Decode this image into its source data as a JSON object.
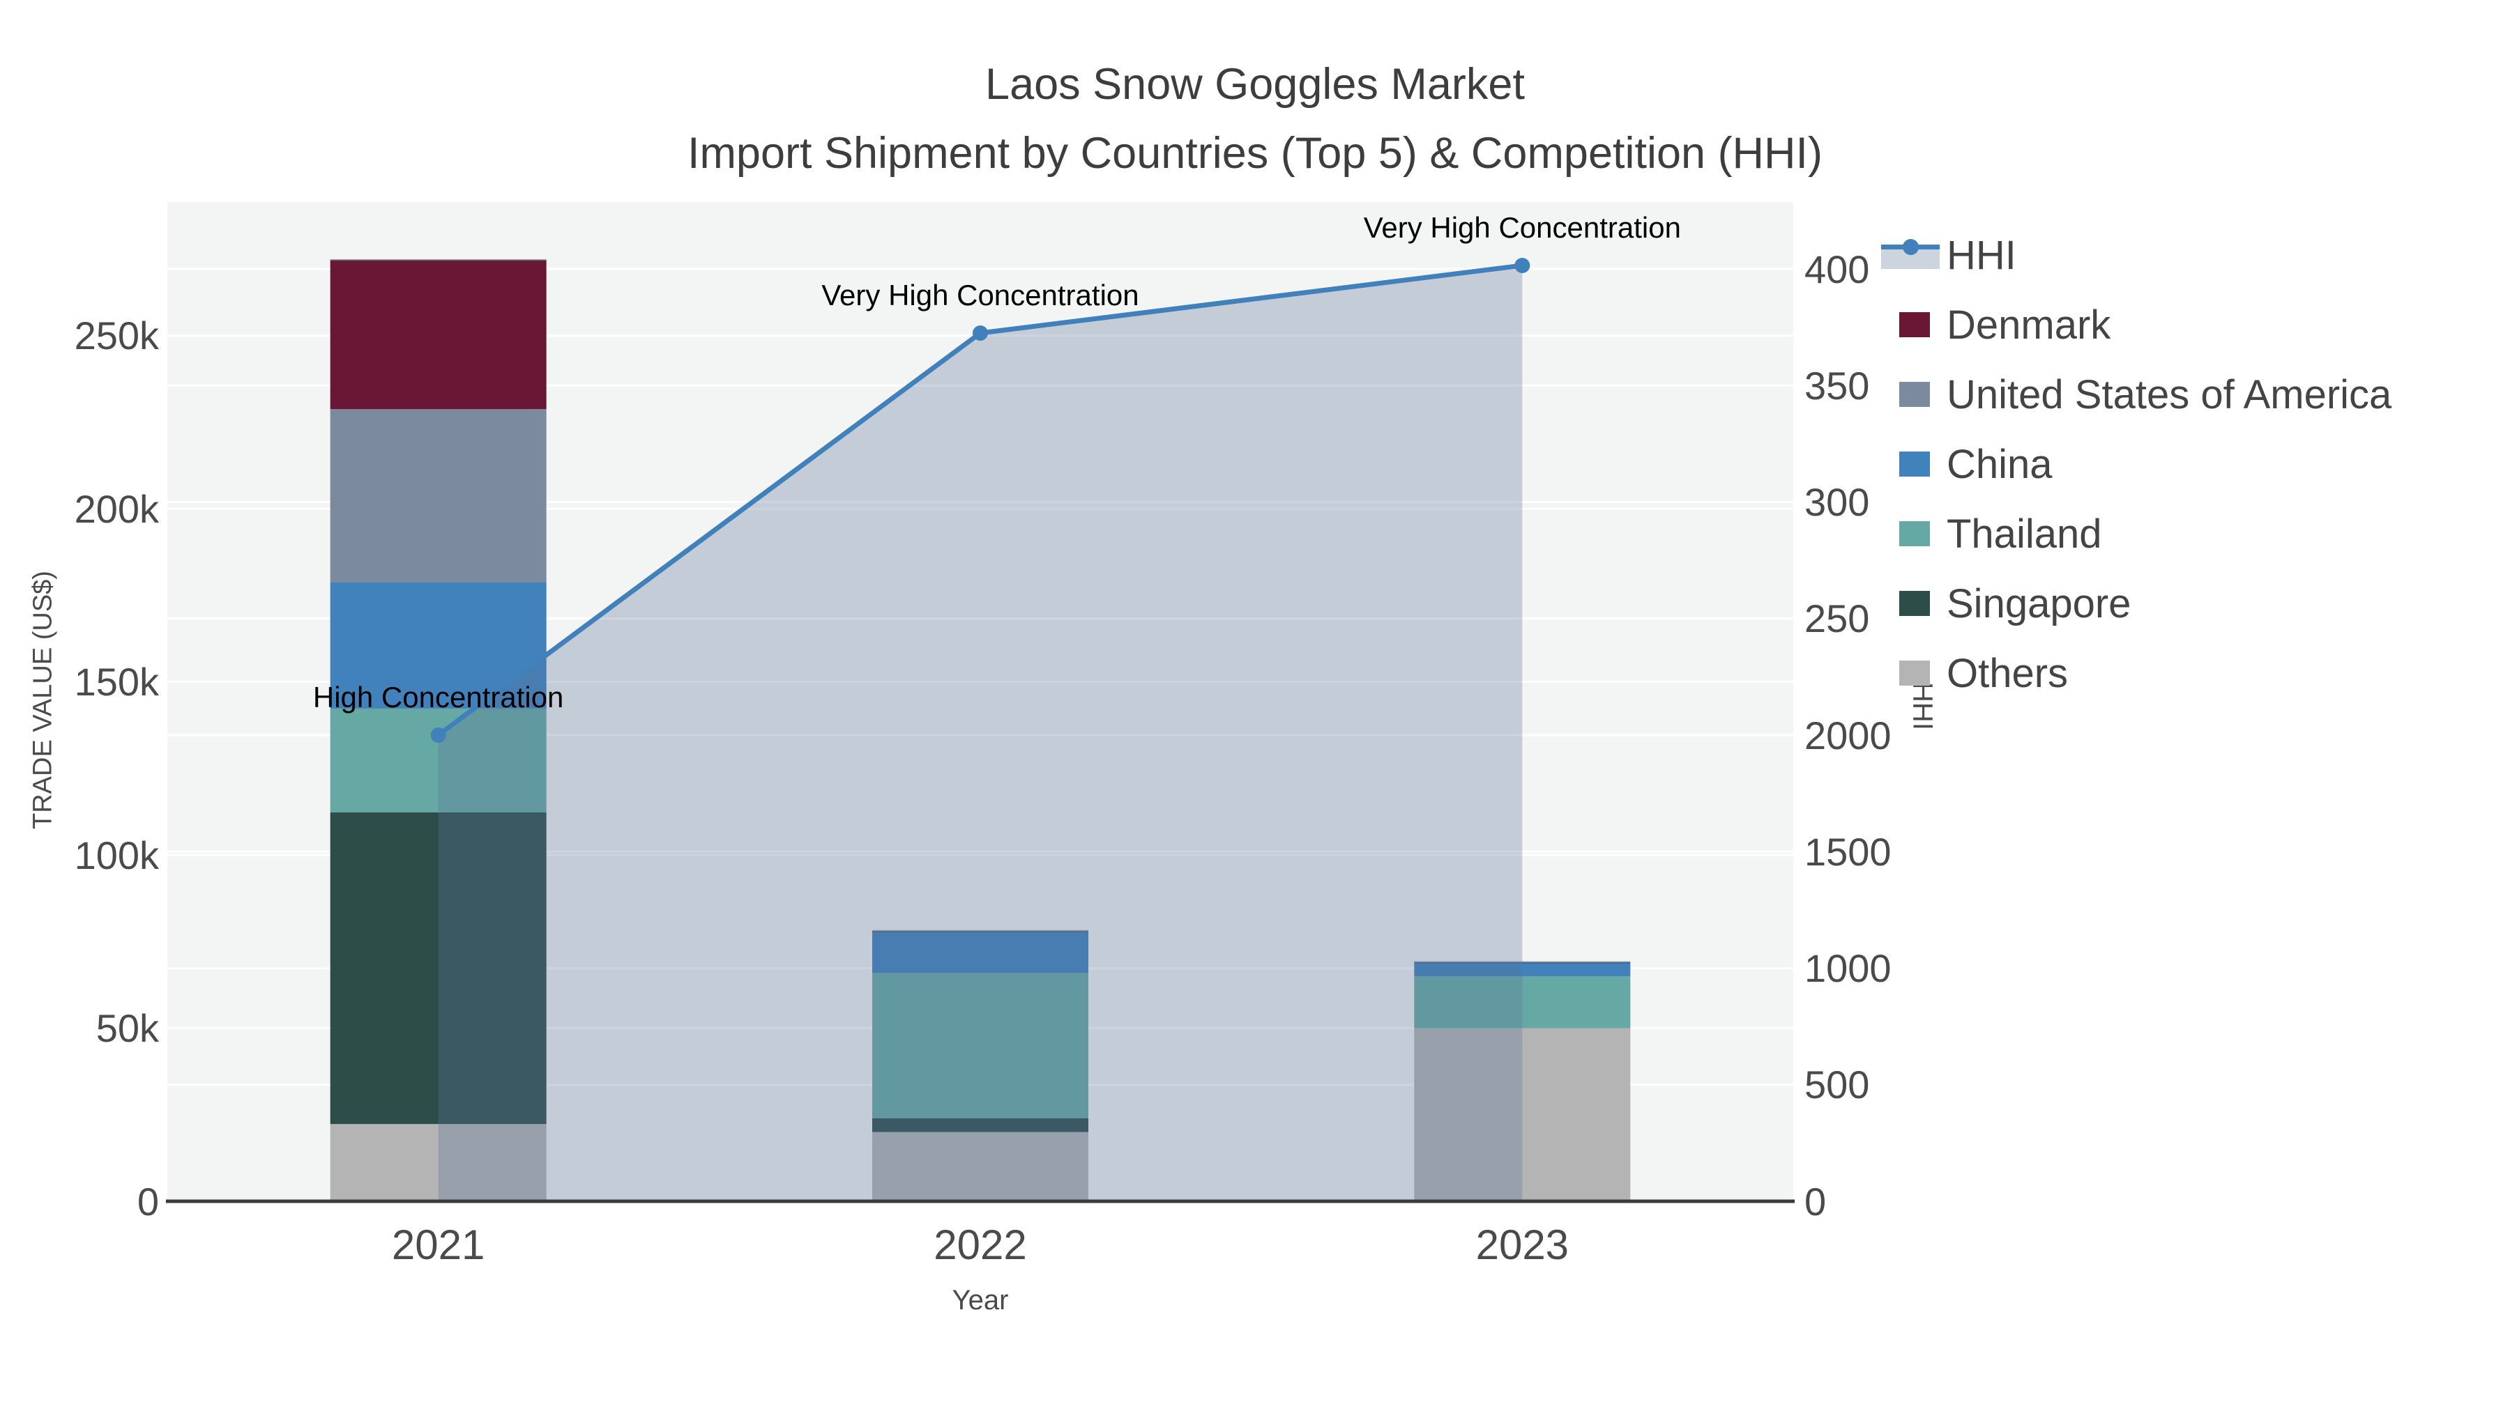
{
  "title": {
    "line1": "Laos Snow Goggles Market",
    "line2": "Import Shipment by Countries (Top 5) & Competition (HHI)"
  },
  "axes": {
    "x_title": "Year",
    "y_left_title": "TRADE VALUE (US$)",
    "y_right_title": "HHI",
    "x_ticks": [
      "2021",
      "2022",
      "2023"
    ],
    "y_left_ticks": [
      {
        "label": "0",
        "value": 0
      },
      {
        "label": "50k",
        "value": 50000
      },
      {
        "label": "100k",
        "value": 100000
      },
      {
        "label": "150k",
        "value": 150000
      },
      {
        "label": "200k",
        "value": 200000
      },
      {
        "label": "250k",
        "value": 250000
      }
    ],
    "y_right_ticks": [
      {
        "label": "0",
        "value": 0
      },
      {
        "label": "500",
        "value": 500
      },
      {
        "label": "1000",
        "value": 1000
      },
      {
        "label": "1500",
        "value": 1500
      },
      {
        "label": "2000",
        "value": 2000
      },
      {
        "label": "250",
        "value": 2500
      },
      {
        "label": "300",
        "value": 3000
      },
      {
        "label": "350",
        "value": 3500
      },
      {
        "label": "400",
        "value": 4000
      }
    ]
  },
  "chart_data": {
    "type": "bar+line",
    "title": "Laos Snow Goggles Market — Import Shipment by Countries (Top 5) & Competition (HHI)",
    "categories": [
      "2021",
      "2022",
      "2023"
    ],
    "bar_value_unit": "US$",
    "stack_order": [
      "Others",
      "Singapore",
      "Thailand",
      "China",
      "United States of America",
      "Denmark"
    ],
    "series": [
      {
        "name": "Denmark",
        "color": "#6a1635",
        "values": [
          43000,
          0,
          0
        ]
      },
      {
        "name": "United States of America",
        "color": "#7b8a9d",
        "values": [
          50000,
          0,
          0
        ]
      },
      {
        "name": "China",
        "color": "#4181bc",
        "values": [
          36500,
          12000,
          4000
        ]
      },
      {
        "name": "Thailand",
        "color": "#66a8a3",
        "values": [
          30000,
          42000,
          15000
        ]
      },
      {
        "name": "Singapore",
        "color": "#2d4d49",
        "values": [
          90000,
          4000,
          0
        ]
      },
      {
        "name": "Others",
        "color": "#b4b4b4",
        "values": [
          22300,
          20000,
          50000
        ]
      }
    ],
    "bar_totals": [
      271800,
      78000,
      69000
    ],
    "line_series": {
      "name": "HHI",
      "color": "#4080bb",
      "fill_color": "rgba(90,115,155,0.31)",
      "values": [
        2000,
        3725,
        4015
      ]
    },
    "annotations": [
      {
        "category": "2021",
        "text": "High Concentration"
      },
      {
        "category": "2022",
        "text": "Very High Concentration"
      },
      {
        "category": "2023",
        "text": "Very High Concentration"
      }
    ],
    "xlabel": "Year",
    "ylabel": "TRADE VALUE (US$)",
    "y2label": "HHI",
    "ylim": [
      0,
      288600
    ],
    "y2lim": [
      0,
      4287
    ],
    "grid": true,
    "legend_position": "right",
    "plot_bg_color": "#f3f4f4",
    "grid_color": "#ffffff",
    "axis_line_color": "#3b3b3b"
  },
  "legend": {
    "items": [
      {
        "label": "HHI",
        "type": "line",
        "color": "#4080bb",
        "band_color": "#ccd4de"
      },
      {
        "label": "Denmark",
        "type": "swatch",
        "color": "#6a1635"
      },
      {
        "label": "United States of America",
        "type": "swatch",
        "color": "#7b8a9d"
      },
      {
        "label": "China",
        "type": "swatch",
        "color": "#4181bc"
      },
      {
        "label": "Thailand",
        "type": "swatch",
        "color": "#66a8a3"
      },
      {
        "label": "Singapore",
        "type": "swatch",
        "color": "#2d4d49"
      },
      {
        "label": "Others",
        "type": "swatch",
        "color": "#b4b4b4"
      }
    ]
  }
}
